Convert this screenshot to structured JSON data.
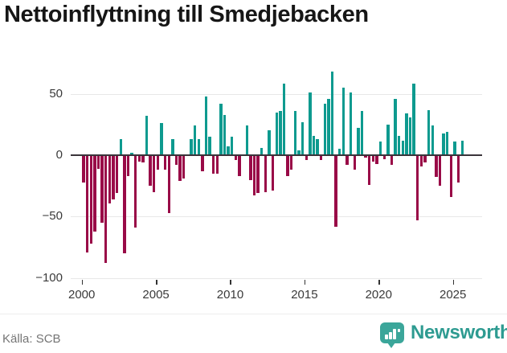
{
  "title": "Nettoinflyttning till Smedjebacken",
  "source": "Källa: SCB",
  "branding": {
    "name": "Newsworthy",
    "badge_color": "#3BA69A",
    "text_color": "#2E9B91"
  },
  "chart_data": {
    "type": "bar",
    "title": "Nettoinflyttning till Smedjebacken",
    "frequency": "quarterly",
    "x_start": {
      "year": 2000,
      "quarter": 1
    },
    "x_end": {
      "year": 2025,
      "quarter": 3
    },
    "values": [
      -22,
      -79,
      -72,
      -62,
      -11,
      -55,
      -88,
      -39,
      -36,
      -31,
      13,
      -80,
      -17,
      2,
      -59,
      -5,
      -6,
      32,
      -25,
      -30,
      -12,
      26,
      -12,
      -47,
      13,
      -8,
      -21,
      -19,
      0,
      13,
      24,
      13,
      -13,
      48,
      15,
      -15,
      -15,
      42,
      33,
      7,
      15,
      -4,
      -17,
      0,
      24,
      -20,
      -33,
      -31,
      6,
      -30,
      20,
      -29,
      35,
      36,
      58,
      -17,
      -12,
      36,
      4,
      27,
      -4,
      51,
      16,
      13,
      -4,
      42,
      46,
      68,
      -58,
      5,
      55,
      -8,
      51,
      -12,
      22,
      36,
      -2,
      -24,
      -5,
      -7,
      11,
      -3,
      25,
      -8,
      46,
      16,
      12,
      34,
      31,
      58,
      -53,
      -9,
      -6,
      37,
      24,
      -18,
      -25,
      18,
      19,
      -34,
      11,
      -22,
      12
    ],
    "x_ticks": [
      2000,
      2005,
      2010,
      2015,
      2020,
      2025
    ],
    "y_ticks": [
      50,
      0,
      -50,
      -100
    ],
    "ylim": [
      -104,
      72
    ],
    "grid": true,
    "legend": "none",
    "positive_color": "#0E9A8F",
    "negative_color": "#990A47",
    "axis_line_color": "#3A343A",
    "gridline_color": "#E8E8E8",
    "label_color": "#3A3A3A",
    "source": "Källa: SCB"
  }
}
